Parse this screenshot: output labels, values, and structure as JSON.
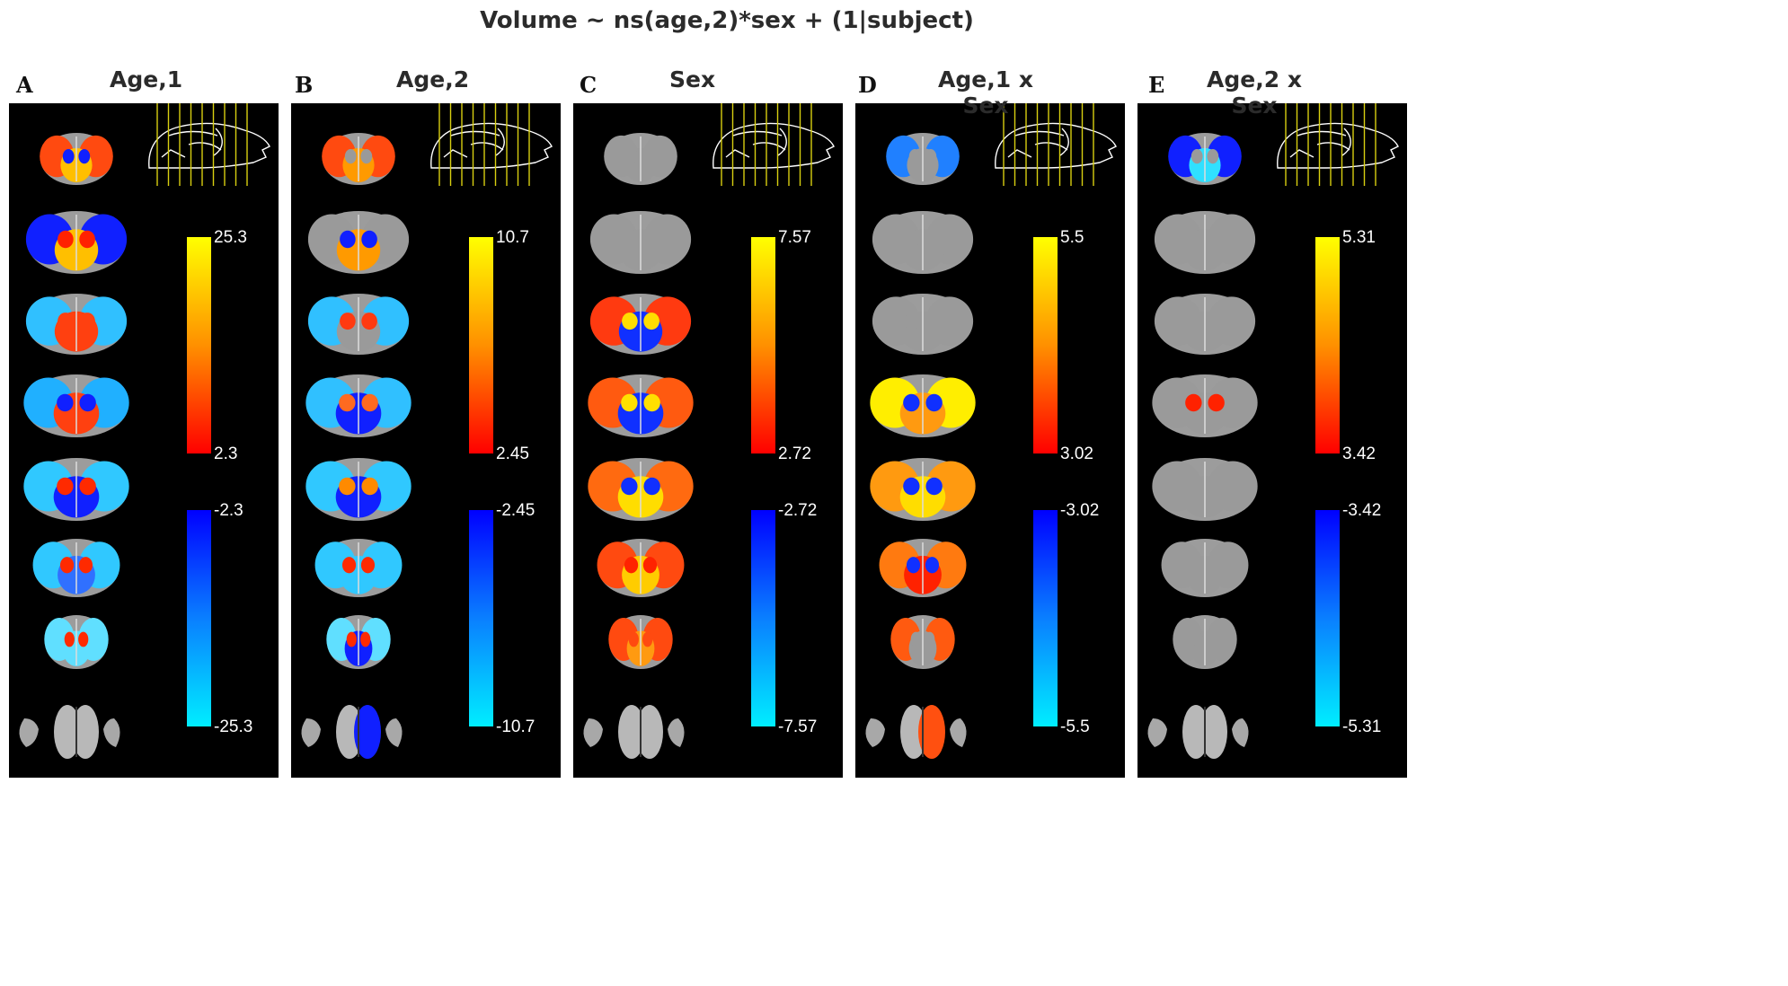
{
  "title": "Volume ~ ns(age,2)*sex + (1|subject)",
  "panels": [
    {
      "letter": "A",
      "title": "Age,1",
      "pos": {
        "max": "25.3",
        "min": "2.3"
      },
      "neg": {
        "max": "-2.3",
        "min": "-25.3"
      },
      "slices": [
        [
          "#ff4a10",
          "#ffbf00",
          "#1020ff"
        ],
        [
          "#1020ff",
          "#ffbf00",
          "#ff2200"
        ],
        [
          "#30c0ff",
          "#ff4010",
          "#ff4010"
        ],
        [
          "#20b0ff",
          "#ff4010",
          "#1020ff"
        ],
        [
          "#30c8ff",
          "#1020ff",
          "#ff2a00"
        ],
        [
          "#30c8ff",
          "#3070ff",
          "#ff2a00"
        ],
        [
          "#60dfff",
          "#60dfff",
          "#ff2a00"
        ],
        [
          "gray",
          "gray",
          "gray"
        ]
      ]
    },
    {
      "letter": "B",
      "title": "Age,2",
      "pos": {
        "max": "10.7",
        "min": "2.45"
      },
      "neg": {
        "max": "-2.45",
        "min": "-10.7"
      },
      "slices": [
        [
          "#ff4a10",
          "#ff9a00",
          "#9a9a9a"
        ],
        [
          "#9a9a9a",
          "#ff9a00",
          "#1020ff"
        ],
        [
          "#30c0ff",
          "#9a9a9a",
          "#ff3a10"
        ],
        [
          "#30c0ff",
          "#1020ff",
          "#ff6a20"
        ],
        [
          "#30c8ff",
          "#1020ff",
          "#ff8a00"
        ],
        [
          "#30c8ff",
          "#30c8ff",
          "#ff2a00"
        ],
        [
          "#60dfff",
          "#1020ff",
          "#ff2a00"
        ],
        [
          "#1020ff",
          "gray",
          "gray"
        ]
      ]
    },
    {
      "letter": "C",
      "title": "Sex",
      "pos": {
        "max": "7.57",
        "min": "2.72"
      },
      "neg": {
        "max": "-2.72",
        "min": "-7.57"
      },
      "slices": [
        [
          "#9a9a9a",
          "#9a9a9a",
          "#9a9a9a"
        ],
        [
          "#9a9a9a",
          "#9a9a9a",
          "#9a9a9a"
        ],
        [
          "#ff3a10",
          "#1030ff",
          "#ffdd00"
        ],
        [
          "#ff5a10",
          "#1030ff",
          "#ffe000"
        ],
        [
          "#ff6a10",
          "#ffdd00",
          "#1030ff"
        ],
        [
          "#ff4a10",
          "#ffcc00",
          "#ff2200"
        ],
        [
          "#ff4a10",
          "#ff9a10",
          "#ff4a10"
        ],
        [
          "gray",
          "gray",
          "gray"
        ]
      ]
    },
    {
      "letter": "D",
      "title": "Age,1 x Sex",
      "pos": {
        "max": "5.5",
        "min": "3.02"
      },
      "neg": {
        "max": "-3.02",
        "min": "-5.5"
      },
      "slices": [
        [
          "#2080ff",
          "#9a9a9a",
          "#9a9a9a"
        ],
        [
          "#9a9a9a",
          "#9a9a9a",
          "#9a9a9a"
        ],
        [
          "#9a9a9a",
          "#9a9a9a",
          "#9a9a9a"
        ],
        [
          "#ffee00",
          "#ff9a10",
          "#1030ff"
        ],
        [
          "#ff9a10",
          "#ffdd00",
          "#1030ff"
        ],
        [
          "#ff7a10",
          "#ff2200",
          "#1030ff"
        ],
        [
          "#ff5a10",
          "#9a9a9a",
          "#9a9a9a"
        ],
        [
          "#ff5010",
          "gray",
          "gray"
        ]
      ]
    },
    {
      "letter": "E",
      "title": "Age,2 x Sex",
      "pos": {
        "max": "5.31",
        "min": "3.42"
      },
      "neg": {
        "max": "-3.42",
        "min": "-5.31"
      },
      "slices": [
        [
          "#1020ff",
          "#30e0ff",
          "#9a9a9a"
        ],
        [
          "#9a9a9a",
          "#9a9a9a",
          "#9a9a9a"
        ],
        [
          "#9a9a9a",
          "#9a9a9a",
          "#9a9a9a"
        ],
        [
          "#9a9a9a",
          "#9a9a9a",
          "#ff2200"
        ],
        [
          "#9a9a9a",
          "#9a9a9a",
          "#9a9a9a"
        ],
        [
          "#9a9a9a",
          "#9a9a9a",
          "#9a9a9a"
        ],
        [
          "#9a9a9a",
          "#9a9a9a",
          "#9a9a9a"
        ],
        [
          "gray",
          "gray",
          "gray"
        ]
      ]
    }
  ]
}
